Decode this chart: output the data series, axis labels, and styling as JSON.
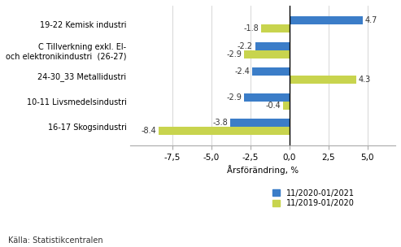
{
  "categories": [
    "19-22 Kemisk industri",
    "C Tillverkning exkl. El-\noch elektronikindustri  (26-27)",
    "24-30_33 Metallidustri",
    "10-11 Livsmedelsindustri",
    "16-17 Skogsindustri"
  ],
  "series1_label": "11/2020-01/2021",
  "series2_label": "11/2019-01/2020",
  "series1_values": [
    4.7,
    -2.2,
    -2.4,
    -2.9,
    -3.8
  ],
  "series2_values": [
    -1.8,
    -2.9,
    4.3,
    -0.4,
    -8.4
  ],
  "color1": "#3B7DC8",
  "color2": "#C8D44E",
  "xlabel": "Årsförändring, %",
  "xlim": [
    -10.2,
    6.8
  ],
  "xticks": [
    -7.5,
    -5.0,
    -2.5,
    0.0,
    2.5,
    5.0
  ],
  "source": "Källa: Statistikcentralen",
  "bar_height": 0.32,
  "background_color": "#ffffff"
}
